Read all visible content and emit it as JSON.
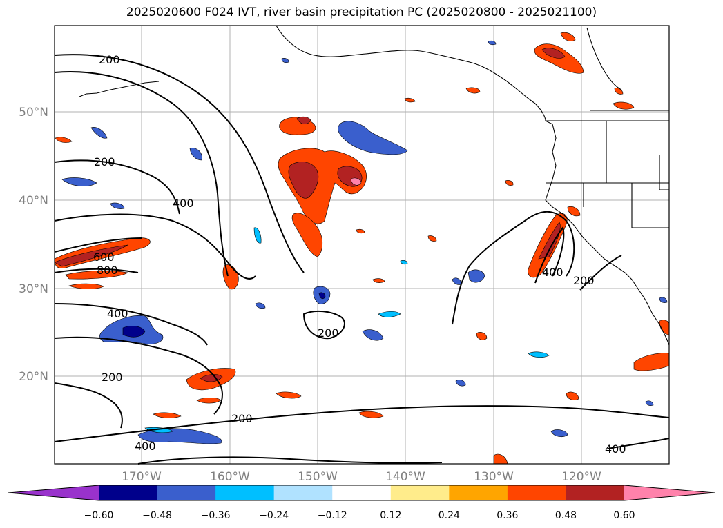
{
  "title": "2025020600 F024 IVT, river basin precipitation PC (2025020800 - 2025021100)",
  "lat_labels": [
    "50°N",
    "40°N",
    "30°N",
    "20°N"
  ],
  "lon_labels": [
    "170°W",
    "160°W",
    "150°W",
    "140°W",
    "130°W",
    "120°W"
  ],
  "contour_labels": [
    "200",
    "200",
    "400",
    "600",
    "800",
    "400",
    "200",
    "200",
    "200",
    "400",
    "200",
    "400",
    "400"
  ],
  "colorbar": {
    "colors": [
      "#9932cc",
      "#00008b",
      "#3a5fcd",
      "#00bfff",
      "#b0e2ff",
      "#ffffff",
      "#ffec8b",
      "#ffa500",
      "#ff4500",
      "#b22222",
      "#ff82ab"
    ],
    "tick_labels": [
      "−0.60",
      "−0.48",
      "−0.36",
      "−0.24",
      "−0.12",
      "0.12",
      "0.24",
      "0.36",
      "0.48",
      "0.60"
    ]
  },
  "colors": {
    "coast": "#000000",
    "grid": "#b0b0b0",
    "ivt_contour": "#000000"
  }
}
